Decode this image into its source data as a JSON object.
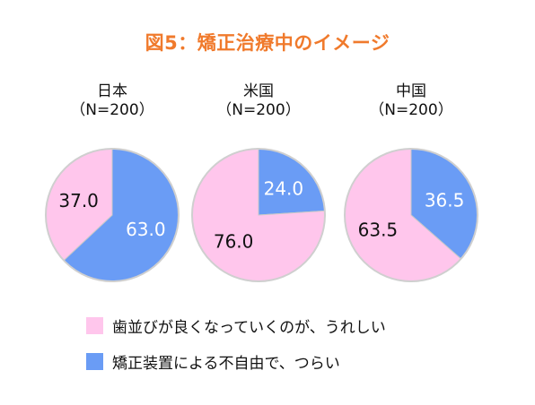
{
  "title": "図5：矯正治療中のイメージ",
  "chart_data": [
    {
      "type": "pie",
      "title": "日本",
      "subtitle": "（N=200）",
      "slices": [
        {
          "category": "歯並びが良くなっていくのが、うれしい",
          "value": 37.0,
          "label": "37.0",
          "color": "#ffc6ec"
        },
        {
          "category": "矯正装置による不自由で、つらい",
          "value": 63.0,
          "label": "63.0",
          "color": "#6a9cf5"
        }
      ]
    },
    {
      "type": "pie",
      "title": "米国",
      "subtitle": "（N=200）",
      "slices": [
        {
          "category": "歯並びが良くなっていくのが、うれしい",
          "value": 76.0,
          "label": "76.0",
          "color": "#ffc6ec"
        },
        {
          "category": "矯正装置による不自由で、つらい",
          "value": 24.0,
          "label": "24.0",
          "color": "#6a9cf5"
        }
      ]
    },
    {
      "type": "pie",
      "title": "中国",
      "subtitle": "（N=200）",
      "slices": [
        {
          "category": "歯並びが良くなっていくのが、うれしい",
          "value": 63.5,
          "label": "63.5",
          "color": "#ffc6ec"
        },
        {
          "category": "矯正装置による不自由で、つらい",
          "value": 36.5,
          "label": "36.5",
          "color": "#6a9cf5"
        }
      ]
    }
  ],
  "legend": [
    {
      "label": "歯並びが良くなっていくのが、うれしい",
      "color": "#ffc6ec"
    },
    {
      "label": "矯正装置による不自由で、つらい",
      "color": "#6a9cf5"
    }
  ]
}
